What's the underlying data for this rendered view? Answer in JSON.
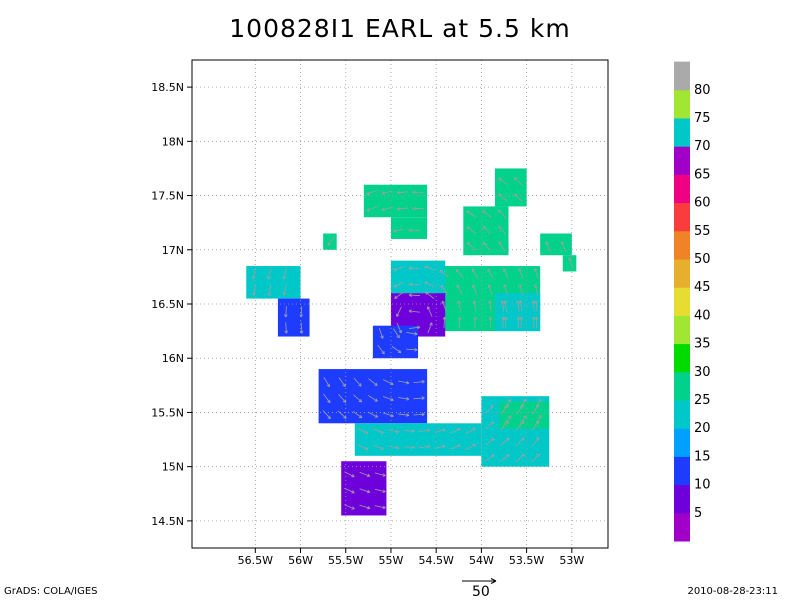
{
  "title": "100828I1 EARL at 5.5 km",
  "footer": {
    "left": "GrADS: COLA/IGES",
    "right": "2010-08-28-23:11"
  },
  "vector_reference": {
    "label": "50"
  },
  "chart_data": {
    "type": "heatmap",
    "title": "100828I1 EARL at 5.5 km",
    "xlabel": "",
    "ylabel": "",
    "xlim": [
      -57.2,
      -52.6
    ],
    "ylim": [
      14.25,
      18.75
    ],
    "grid": true,
    "x_ticks": [
      -56.5,
      -56,
      -55.5,
      -55,
      -54.5,
      -54,
      -53.5,
      -53
    ],
    "x_tick_labels": [
      "56.5W",
      "56W",
      "55.5W",
      "55W",
      "54.5W",
      "54W",
      "53.5W",
      "53W"
    ],
    "y_ticks": [
      14.5,
      15,
      15.5,
      16,
      16.5,
      17,
      17.5,
      18,
      18.5
    ],
    "y_tick_labels": [
      "14.5N",
      "15N",
      "15.5N",
      "16N",
      "16.5N",
      "17N",
      "17.5N",
      "18N",
      "18.5N"
    ],
    "colorbar": {
      "levels": [
        0,
        5,
        10,
        15,
        20,
        25,
        30,
        35,
        40,
        45,
        50,
        55,
        60,
        65,
        70,
        75,
        80,
        85
      ],
      "labels": [
        "5",
        "10",
        "15",
        "20",
        "25",
        "30",
        "35",
        "40",
        "45",
        "50",
        "55",
        "60",
        "65",
        "70",
        "75",
        "80"
      ],
      "colors": [
        "#a000c8",
        "#6e00dc",
        "#1e3cff",
        "#00a0ff",
        "#00c8c8",
        "#00d28c",
        "#00dc00",
        "#a0e632",
        "#e6dc32",
        "#e6af2d",
        "#f08228",
        "#fa3c3c",
        "#f00082",
        "#a000c8",
        "#00c8c8",
        "#a0e632",
        "#aaaaaa"
      ]
    },
    "regions": [
      {
        "lon": [
          -55.3,
          -54.6
        ],
        "lat": [
          17.3,
          17.6
        ],
        "value": 27
      },
      {
        "lon": [
          -55.0,
          -54.6
        ],
        "lat": [
          17.1,
          17.3
        ],
        "value": 27
      },
      {
        "lon": [
          -54.2,
          -53.7
        ],
        "lat": [
          16.95,
          17.4
        ],
        "value": 27
      },
      {
        "lon": [
          -53.85,
          -53.5
        ],
        "lat": [
          17.4,
          17.75
        ],
        "value": 27
      },
      {
        "lon": [
          -53.35,
          -53.0
        ],
        "lat": [
          16.95,
          17.15
        ],
        "value": 27
      },
      {
        "lon": [
          -53.1,
          -52.95
        ],
        "lat": [
          16.8,
          16.95
        ],
        "value": 27
      },
      {
        "lon": [
          -55.75,
          -55.6
        ],
        "lat": [
          17.0,
          17.15
        ],
        "value": 27
      },
      {
        "lon": [
          -56.6,
          -56.0
        ],
        "lat": [
          16.55,
          16.85
        ],
        "value": 22
      },
      {
        "lon": [
          -56.25,
          -55.9
        ],
        "lat": [
          16.2,
          16.55
        ],
        "value": 13
      },
      {
        "lon": [
          -54.5,
          -53.35
        ],
        "lat": [
          16.25,
          16.85
        ],
        "value": 25
      },
      {
        "lon": [
          -53.85,
          -53.35
        ],
        "lat": [
          16.25,
          16.6
        ],
        "value": 22
      },
      {
        "lon": [
          -55.0,
          -54.4
        ],
        "lat": [
          16.6,
          16.9
        ],
        "value": 20
      },
      {
        "lon": [
          -55.0,
          -54.4
        ],
        "lat": [
          16.2,
          16.6
        ],
        "value": 8
      },
      {
        "lon": [
          -55.2,
          -54.7
        ],
        "lat": [
          16.0,
          16.3
        ],
        "value": 13
      },
      {
        "lon": [
          -55.8,
          -54.6
        ],
        "lat": [
          15.4,
          15.9
        ],
        "value": 13
      },
      {
        "lon": [
          -55.4,
          -54.0
        ],
        "lat": [
          15.1,
          15.4
        ],
        "value": 22
      },
      {
        "lon": [
          -54.0,
          -53.25
        ],
        "lat": [
          15.0,
          15.65
        ],
        "value": 22
      },
      {
        "lon": [
          -53.8,
          -53.25
        ],
        "lat": [
          15.35,
          15.6
        ],
        "value": 25
      },
      {
        "lon": [
          -55.55,
          -55.05
        ],
        "lat": [
          14.55,
          15.05
        ],
        "value": 8
      }
    ]
  }
}
